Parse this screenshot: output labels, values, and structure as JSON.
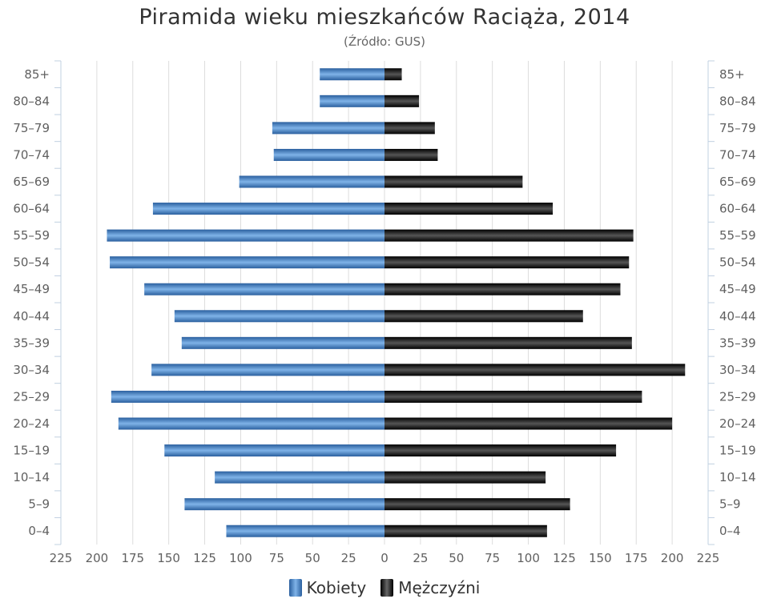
{
  "title": "Piramida wieku mieszkańców Raciąża, 2014",
  "subtitle": "(Źródło: GUS)",
  "chart_data": {
    "type": "bar",
    "orientation": "horizontal-pyramid",
    "categories": [
      "85+",
      "80–84",
      "75–79",
      "70–74",
      "65–69",
      "60–64",
      "55–59",
      "50–54",
      "45–49",
      "40–44",
      "35–39",
      "30–34",
      "25–29",
      "20–24",
      "15–19",
      "10–14",
      "5–9",
      "0–4"
    ],
    "series": [
      {
        "name": "Kobiety",
        "color": "#3d78b8",
        "values": [
          45,
          45,
          78,
          77,
          101,
          161,
          193,
          191,
          167,
          146,
          141,
          162,
          190,
          185,
          153,
          118,
          139,
          110
        ]
      },
      {
        "name": "Mężczyźni",
        "color": "#1a1a1a",
        "values": [
          12,
          24,
          35,
          37,
          96,
          117,
          173,
          170,
          164,
          138,
          172,
          209,
          179,
          200,
          161,
          112,
          129,
          113
        ]
      }
    ],
    "xlim": [
      -225,
      225
    ],
    "xticks": [
      "225",
      "200",
      "175",
      "150",
      "125",
      "100",
      "75",
      "50",
      "25",
      "0",
      "25",
      "50",
      "75",
      "100",
      "125",
      "150",
      "175",
      "200",
      "225"
    ],
    "grid": true,
    "legend_position": "bottom-center"
  }
}
